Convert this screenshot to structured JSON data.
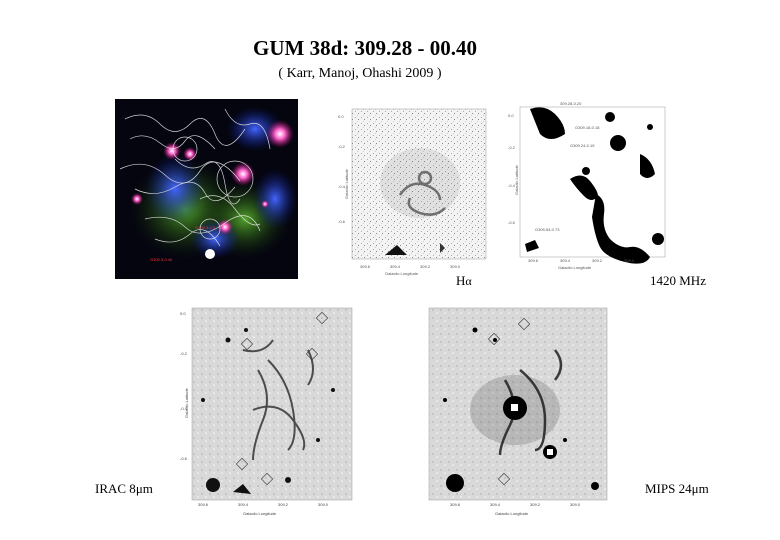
{
  "header": {
    "title": "GUM 38d: 309.28 - 00.40",
    "citation": "( Karr, Manoj, Ohashi 2009 )"
  },
  "panels": {
    "composite": {
      "name": "rgb-composite"
    },
    "halpha": {
      "label_main": "H",
      "label_sub": "α"
    },
    "radio": {
      "label": "1420 MHz",
      "corner_title": "309.28-0.20"
    },
    "irac": {
      "label_prefix": "IRAC 8",
      "label_unit": "μm"
    },
    "mips": {
      "label_prefix": "MIPS 24",
      "label_unit": "μm"
    }
  },
  "axis_text": {
    "galactic_longitude": "Galactic Longitude",
    "galactic_latitude": "Galactic Latitude"
  }
}
